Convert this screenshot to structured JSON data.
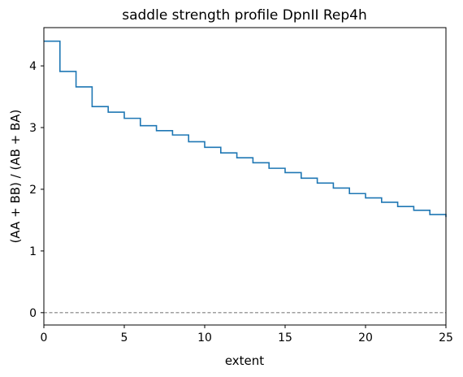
{
  "chart_data": {
    "type": "line",
    "title": "saddle strength profile DpnII Rep4h",
    "xlabel": "extent",
    "ylabel": "(AA + BB) / (AB + BA)",
    "xlim": [
      0,
      25
    ],
    "ylim": [
      -0.2,
      4.62
    ],
    "xticks": [
      0,
      5,
      10,
      15,
      20,
      25
    ],
    "yticks": [
      0,
      1,
      2,
      3,
      4
    ],
    "grid": false,
    "drawstyle": "steps-post",
    "reference_line": {
      "y": 0,
      "style": "dashed",
      "color": "#808080"
    },
    "line_color": "#1f77b4",
    "series": [
      {
        "x": [
          0,
          1,
          2,
          3,
          4,
          5,
          6,
          7,
          8,
          9,
          10,
          11,
          12,
          13,
          14,
          15,
          16,
          17,
          18,
          19,
          20,
          21,
          22,
          23,
          24,
          25
        ],
        "values": [
          4.4,
          3.91,
          3.66,
          3.34,
          3.25,
          3.15,
          3.03,
          2.95,
          2.88,
          2.77,
          2.68,
          2.59,
          2.51,
          2.43,
          2.34,
          2.27,
          2.18,
          2.1,
          2.02,
          1.93,
          1.86,
          1.79,
          1.72,
          1.66,
          1.59,
          1.55
        ]
      }
    ]
  }
}
